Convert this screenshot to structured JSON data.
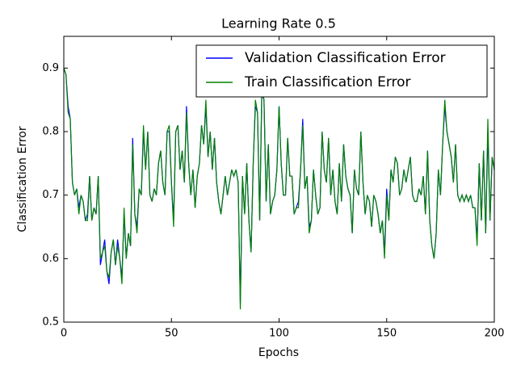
{
  "chart_data": {
    "type": "line",
    "title": "Learning Rate 0.5",
    "xlabel": "Epochs",
    "ylabel": "Classification Error",
    "x": [
      0,
      1,
      2,
      3,
      4,
      5,
      6,
      7,
      8,
      9,
      10,
      11,
      12,
      13,
      14,
      15,
      16,
      17,
      18,
      19,
      20,
      21,
      22,
      23,
      24,
      25,
      26,
      27,
      28,
      29,
      30,
      31,
      32,
      33,
      34,
      35,
      36,
      37,
      38,
      39,
      40,
      41,
      42,
      43,
      44,
      45,
      46,
      47,
      48,
      49,
      50,
      51,
      52,
      53,
      54,
      55,
      56,
      57,
      58,
      59,
      60,
      61,
      62,
      63,
      64,
      65,
      66,
      67,
      68,
      69,
      70,
      71,
      72,
      73,
      74,
      75,
      76,
      77,
      78,
      79,
      80,
      81,
      82,
      83,
      84,
      85,
      86,
      87,
      88,
      89,
      90,
      91,
      92,
      93,
      94,
      95,
      96,
      97,
      98,
      99,
      100,
      101,
      102,
      103,
      104,
      105,
      106,
      107,
      108,
      109,
      110,
      111,
      112,
      113,
      114,
      115,
      116,
      117,
      118,
      119,
      120,
      121,
      122,
      123,
      124,
      125,
      126,
      127,
      128,
      129,
      130,
      131,
      132,
      133,
      134,
      135,
      136,
      137,
      138,
      139,
      140,
      141,
      142,
      143,
      144,
      145,
      146,
      147,
      148,
      149,
      150,
      151,
      152,
      153,
      154,
      155,
      156,
      157,
      158,
      159,
      160,
      161,
      162,
      163,
      164,
      165,
      166,
      167,
      168,
      169,
      170,
      171,
      172,
      173,
      174,
      175,
      176,
      177,
      178,
      179,
      180,
      181,
      182,
      183,
      184,
      185,
      186,
      187,
      188,
      189,
      190,
      191,
      192,
      193,
      194,
      195,
      196,
      197,
      198,
      199,
      200
    ],
    "series": [
      {
        "name": "Validation Classification Error",
        "color": "#0000ff",
        "values": [
          0.9,
          0.89,
          0.84,
          0.82,
          0.72,
          0.7,
          0.71,
          0.68,
          0.7,
          0.69,
          0.66,
          0.67,
          0.73,
          0.66,
          0.68,
          0.67,
          0.73,
          0.59,
          0.61,
          0.63,
          0.58,
          0.56,
          0.61,
          0.63,
          0.59,
          0.63,
          0.6,
          0.57,
          0.67,
          0.6,
          0.64,
          0.62,
          0.79,
          0.67,
          0.65,
          0.71,
          0.7,
          0.8,
          0.74,
          0.8,
          0.7,
          0.69,
          0.71,
          0.7,
          0.75,
          0.77,
          0.72,
          0.7,
          0.8,
          0.8,
          0.72,
          0.66,
          0.8,
          0.81,
          0.74,
          0.77,
          0.72,
          0.84,
          0.75,
          0.7,
          0.74,
          0.68,
          0.73,
          0.75,
          0.81,
          0.78,
          0.84,
          0.76,
          0.8,
          0.74,
          0.79,
          0.72,
          0.69,
          0.67,
          0.7,
          0.73,
          0.7,
          0.72,
          0.74,
          0.73,
          0.74,
          0.72,
          0.53,
          0.73,
          0.67,
          0.75,
          0.66,
          0.61,
          0.75,
          0.84,
          0.83,
          0.66,
          0.86,
          0.85,
          0.69,
          0.78,
          0.67,
          0.69,
          0.7,
          0.74,
          0.84,
          0.75,
          0.7,
          0.7,
          0.79,
          0.73,
          0.73,
          0.67,
          0.68,
          0.69,
          0.74,
          0.82,
          0.71,
          0.73,
          0.65,
          0.66,
          0.74,
          0.7,
          0.67,
          0.68,
          0.8,
          0.74,
          0.72,
          0.79,
          0.7,
          0.74,
          0.69,
          0.67,
          0.75,
          0.69,
          0.78,
          0.73,
          0.71,
          0.7,
          0.64,
          0.74,
          0.71,
          0.7,
          0.8,
          0.72,
          0.67,
          0.7,
          0.69,
          0.65,
          0.7,
          0.69,
          0.67,
          0.64,
          0.66,
          0.61,
          0.71,
          0.66,
          0.74,
          0.72,
          0.76,
          0.75,
          0.7,
          0.71,
          0.74,
          0.72,
          0.74,
          0.76,
          0.7,
          0.69,
          0.69,
          0.71,
          0.7,
          0.73,
          0.67,
          0.77,
          0.66,
          0.62,
          0.6,
          0.64,
          0.74,
          0.7,
          0.78,
          0.84,
          0.8,
          0.78,
          0.76,
          0.72,
          0.78,
          0.7,
          0.69,
          0.7,
          0.69,
          0.7,
          0.69,
          0.7,
          0.68,
          0.68,
          0.63,
          0.75,
          0.66,
          0.77,
          0.64,
          0.8,
          0.66,
          0.76,
          0.74
        ]
      },
      {
        "name": "Train Classification Error",
        "color": "#008000",
        "values": [
          0.9,
          0.89,
          0.83,
          0.82,
          0.72,
          0.7,
          0.71,
          0.67,
          0.7,
          0.69,
          0.66,
          0.66,
          0.73,
          0.66,
          0.68,
          0.67,
          0.73,
          0.6,
          0.61,
          0.62,
          0.58,
          0.57,
          0.61,
          0.63,
          0.59,
          0.62,
          0.6,
          0.56,
          0.68,
          0.6,
          0.64,
          0.62,
          0.78,
          0.67,
          0.64,
          0.71,
          0.7,
          0.81,
          0.74,
          0.8,
          0.7,
          0.69,
          0.71,
          0.7,
          0.75,
          0.77,
          0.72,
          0.7,
          0.8,
          0.81,
          0.72,
          0.65,
          0.8,
          0.81,
          0.74,
          0.77,
          0.72,
          0.83,
          0.75,
          0.7,
          0.74,
          0.68,
          0.73,
          0.75,
          0.81,
          0.78,
          0.85,
          0.76,
          0.8,
          0.74,
          0.79,
          0.72,
          0.69,
          0.67,
          0.7,
          0.73,
          0.7,
          0.72,
          0.74,
          0.73,
          0.74,
          0.72,
          0.52,
          0.73,
          0.67,
          0.75,
          0.66,
          0.61,
          0.75,
          0.85,
          0.83,
          0.66,
          0.87,
          0.85,
          0.69,
          0.78,
          0.67,
          0.69,
          0.7,
          0.74,
          0.84,
          0.75,
          0.7,
          0.7,
          0.79,
          0.73,
          0.73,
          0.67,
          0.68,
          0.68,
          0.74,
          0.81,
          0.71,
          0.73,
          0.64,
          0.66,
          0.74,
          0.7,
          0.67,
          0.68,
          0.8,
          0.74,
          0.72,
          0.79,
          0.7,
          0.74,
          0.69,
          0.67,
          0.75,
          0.69,
          0.78,
          0.73,
          0.71,
          0.7,
          0.64,
          0.74,
          0.71,
          0.7,
          0.8,
          0.72,
          0.67,
          0.7,
          0.69,
          0.65,
          0.7,
          0.69,
          0.67,
          0.64,
          0.66,
          0.6,
          0.7,
          0.66,
          0.74,
          0.72,
          0.76,
          0.75,
          0.7,
          0.71,
          0.74,
          0.72,
          0.74,
          0.76,
          0.7,
          0.69,
          0.69,
          0.71,
          0.7,
          0.73,
          0.67,
          0.77,
          0.66,
          0.62,
          0.6,
          0.64,
          0.74,
          0.7,
          0.78,
          0.85,
          0.8,
          0.78,
          0.76,
          0.72,
          0.78,
          0.7,
          0.69,
          0.7,
          0.69,
          0.7,
          0.69,
          0.7,
          0.68,
          0.68,
          0.62,
          0.75,
          0.66,
          0.77,
          0.64,
          0.82,
          0.66,
          0.76,
          0.74
        ]
      }
    ],
    "xlim": [
      0,
      200
    ],
    "xticks": [
      0,
      50,
      100,
      150,
      200
    ],
    "ylim": [
      0.5,
      0.95
    ],
    "yticks": [
      0.5,
      0.6,
      0.7,
      0.8,
      0.9
    ],
    "legend": "upper right"
  }
}
